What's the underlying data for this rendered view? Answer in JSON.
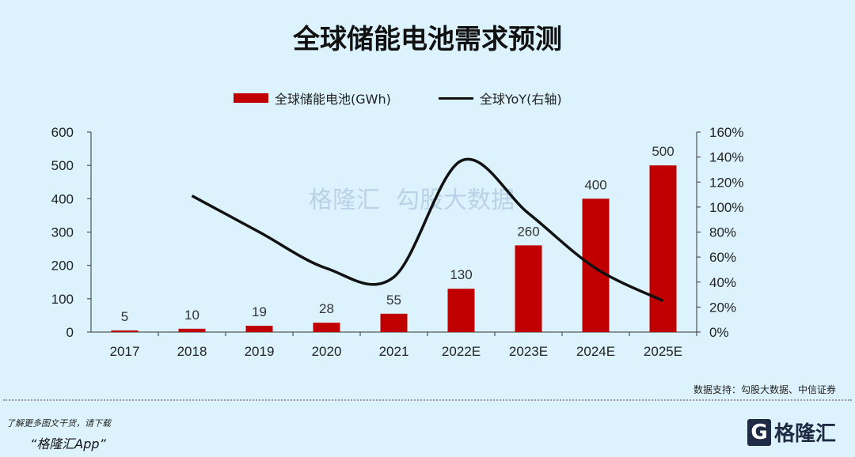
{
  "chart_data": {
    "type": "bar+line",
    "title": "全球储能电池需求预测",
    "categories": [
      "2017",
      "2018",
      "2019",
      "2020",
      "2021",
      "2022E",
      "2023E",
      "2024E",
      "2025E"
    ],
    "series": [
      {
        "name": "全球储能电池(GWh)",
        "type": "bar",
        "axis": "left",
        "color": "#c00000",
        "values": [
          5,
          10,
          19,
          28,
          55,
          130,
          260,
          400,
          500
        ],
        "labels": [
          "5",
          "10",
          "19",
          "28",
          "55",
          "130",
          "260",
          "400",
          "500"
        ]
      },
      {
        "name": "全球YoY(右轴)",
        "type": "line",
        "axis": "right",
        "color": "#111111",
        "values": [
          null,
          109,
          80,
          51,
          44,
          137,
          95,
          51,
          25
        ]
      }
    ],
    "left_axis": {
      "ylim": [
        0,
        600
      ],
      "ticks": [
        "0",
        "100",
        "200",
        "300",
        "400",
        "500",
        "600"
      ]
    },
    "right_axis": {
      "ylim": [
        0,
        160
      ],
      "ticks": [
        "0%",
        "20%",
        "40%",
        "60%",
        "80%",
        "100%",
        "120%",
        "140%",
        "160%"
      ]
    },
    "grid": false,
    "legend": "top"
  },
  "source": "数据支持：勾股大数据、中信证券",
  "footer": {
    "line1": "了解更多图文干货，请下载",
    "line2": "“格隆汇App”",
    "logo": "格隆汇"
  },
  "watermark": {
    "left": "格隆汇",
    "right": "勾股大数据"
  }
}
